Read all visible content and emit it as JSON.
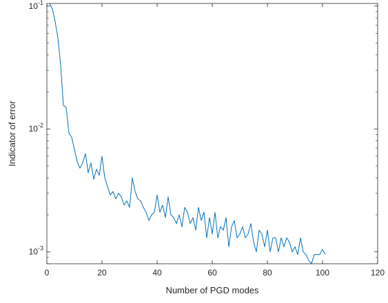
{
  "chart_data": {
    "type": "line",
    "title": "",
    "xlabel": "Number of PGD modes",
    "ylabel": "Indicator of error",
    "xlim": [
      0,
      120
    ],
    "ylim": [
      0.0008,
      0.105
    ],
    "yscale": "log",
    "grid": false,
    "x_ticks": [
      0,
      20,
      40,
      60,
      80,
      100,
      120
    ],
    "y_ticks": [
      {
        "value": 0.1,
        "base": "10",
        "exp": "-1"
      },
      {
        "value": 0.01,
        "base": "10",
        "exp": "-2"
      },
      {
        "value": 0.001,
        "base": "10",
        "exp": "-3"
      }
    ],
    "series_color": "#0072BD",
    "x": [
      1,
      2,
      3,
      4,
      5,
      6,
      7,
      8,
      9,
      10,
      11,
      12,
      13,
      14,
      15,
      16,
      17,
      18,
      19,
      20,
      21,
      22,
      23,
      24,
      25,
      26,
      27,
      28,
      29,
      30,
      31,
      32,
      33,
      34,
      35,
      36,
      37,
      38,
      39,
      40,
      41,
      42,
      43,
      44,
      45,
      46,
      47,
      48,
      49,
      50,
      51,
      52,
      53,
      54,
      55,
      56,
      57,
      58,
      59,
      60,
      61,
      62,
      63,
      64,
      65,
      66,
      67,
      68,
      69,
      70,
      71,
      72,
      73,
      74,
      75,
      76,
      77,
      78,
      79,
      80,
      81,
      82,
      83,
      84,
      85,
      86,
      87,
      88,
      89,
      90,
      91,
      92,
      93,
      94,
      95,
      96,
      97,
      98,
      99,
      100,
      101
    ],
    "y": [
      0.105,
      0.095,
      0.075,
      0.055,
      0.033,
      0.0155,
      0.015,
      0.0092,
      0.0086,
      0.0068,
      0.0054,
      0.0048,
      0.0053,
      0.0063,
      0.0044,
      0.0053,
      0.0039,
      0.0047,
      0.0042,
      0.006,
      0.004,
      0.0034,
      0.0029,
      0.0031,
      0.0027,
      0.003,
      0.0028,
      0.0024,
      0.0026,
      0.0023,
      0.004,
      0.0031,
      0.0027,
      0.0026,
      0.0023,
      0.0021,
      0.0018,
      0.002,
      0.0021,
      0.0029,
      0.0021,
      0.0024,
      0.0019,
      0.0028,
      0.002,
      0.0019,
      0.0017,
      0.002,
      0.0016,
      0.0023,
      0.0021,
      0.0017,
      0.0019,
      0.0015,
      0.0023,
      0.0018,
      0.0021,
      0.0013,
      0.0019,
      0.0014,
      0.0021,
      0.0013,
      0.0016,
      0.0015,
      0.0019,
      0.0011,
      0.0016,
      0.0018,
      0.0013,
      0.0014,
      0.0016,
      0.0013,
      0.0014,
      0.0017,
      0.0012,
      0.001,
      0.0015,
      0.0014,
      0.0011,
      0.0015,
      0.001,
      0.0013,
      0.0013,
      0.001,
      0.0013,
      0.0011,
      0.0013,
      0.0012,
      0.001,
      0.0011,
      0.00095,
      0.0013,
      0.001,
      0.00095,
      0.00085,
      0.0008,
      0.00095,
      0.00095,
      0.00095,
      0.00105,
      0.00095
    ]
  }
}
